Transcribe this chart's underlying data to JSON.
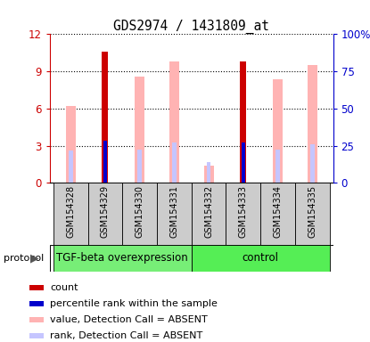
{
  "title": "GDS2974 / 1431809_at",
  "samples": [
    "GSM154328",
    "GSM154329",
    "GSM154330",
    "GSM154331",
    "GSM154332",
    "GSM154333",
    "GSM154334",
    "GSM154335"
  ],
  "left_axis_color": "#cc0000",
  "right_axis_color": "#0000cc",
  "ylim_left": [
    0,
    12
  ],
  "ylim_right": [
    0,
    100
  ],
  "yticks_left": [
    0,
    3,
    6,
    9,
    12
  ],
  "yticks_right": [
    0,
    25,
    50,
    75,
    100
  ],
  "ytick_labels_right": [
    "0",
    "25",
    "50",
    "75",
    "100%"
  ],
  "count_color": "#cc0000",
  "rank_color": "#0000cc",
  "absent_value_color": "#ffb3b3",
  "absent_rank_color": "#c5c5ff",
  "count_values": [
    0,
    10.6,
    0,
    0,
    0,
    9.8,
    0,
    0
  ],
  "rank_values": [
    0,
    3.4,
    0,
    0,
    0,
    3.3,
    0,
    0
  ],
  "absent_value": [
    6.2,
    0,
    8.6,
    9.8,
    1.4,
    0,
    8.4,
    9.5
  ],
  "absent_rank": [
    2.6,
    0,
    2.7,
    3.3,
    1.7,
    0,
    2.7,
    3.1
  ],
  "group1_label": "TGF-beta overexpression",
  "group2_label": "control",
  "group1_color": "#77ee77",
  "group2_color": "#55ee55",
  "protocol_label": "protocol",
  "legend_items": [
    "count",
    "percentile rank within the sample",
    "value, Detection Call = ABSENT",
    "rank, Detection Call = ABSENT"
  ],
  "legend_colors": [
    "#cc0000",
    "#0000cc",
    "#ffb3b3",
    "#c5c5ff"
  ],
  "bg_color": "#ffffff",
  "sample_box_color": "#cccccc",
  "chart_bg": "#ffffff"
}
